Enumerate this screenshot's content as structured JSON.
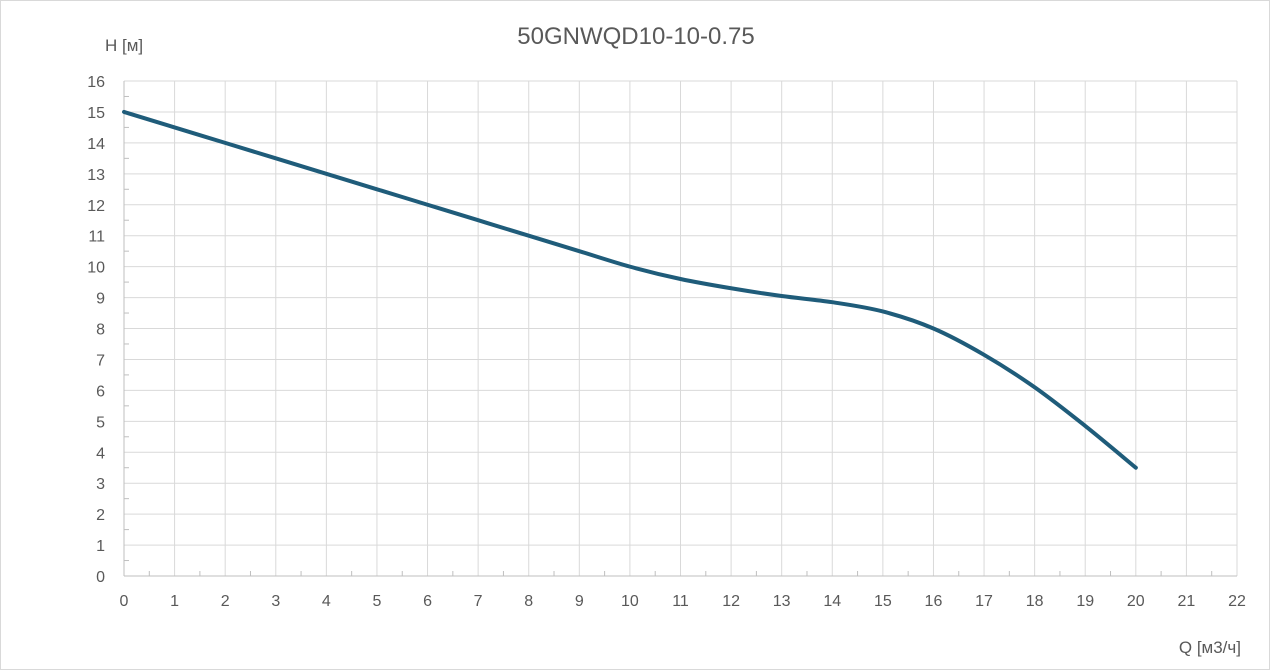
{
  "chart_data": {
    "type": "line",
    "title": "50GNWQD10-10-0.75",
    "xlabel": "Q [м3/ч]",
    "ylabel": "H [м]",
    "xlim": [
      0,
      22
    ],
    "ylim": [
      0,
      16
    ],
    "x_ticks": [
      "0",
      "1",
      "2",
      "3",
      "4",
      "5",
      "6",
      "7",
      "8",
      "9",
      "10",
      "11",
      "12",
      "13",
      "14",
      "15",
      "16",
      "17",
      "18",
      "19",
      "20",
      "21",
      "22"
    ],
    "y_ticks": [
      "0",
      "1",
      "2",
      "3",
      "4",
      "5",
      "6",
      "7",
      "8",
      "9",
      "10",
      "11",
      "12",
      "13",
      "14",
      "15",
      "16"
    ],
    "grid": true,
    "series": [
      {
        "color": "#1f5c7a",
        "x": [
          0,
          1,
          2,
          3,
          4,
          5,
          6,
          7,
          8,
          9,
          10,
          11,
          12,
          13,
          14,
          15,
          16,
          17,
          18,
          19,
          20
        ],
        "y": [
          15,
          14.5,
          14,
          13.5,
          13,
          12.5,
          12,
          11.5,
          11,
          10.5,
          10,
          9.6,
          9.3,
          9.05,
          8.85,
          8.55,
          8,
          7.15,
          6.1,
          4.85,
          3.5
        ]
      }
    ]
  }
}
